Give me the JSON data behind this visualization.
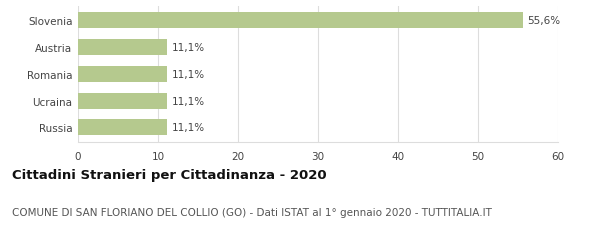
{
  "categories": [
    "Russia",
    "Ucraina",
    "Romania",
    "Austria",
    "Slovenia"
  ],
  "values": [
    11.1,
    11.1,
    11.1,
    11.1,
    55.6
  ],
  "labels": [
    "11,1%",
    "11,1%",
    "11,1%",
    "11,1%",
    "55,6%"
  ],
  "bar_color": "#b5c98e",
  "background_color": "#ffffff",
  "xlim": [
    0,
    60
  ],
  "xticks": [
    0,
    10,
    20,
    30,
    40,
    50,
    60
  ],
  "title_bold": "Cittadini Stranieri per Cittadinanza - 2020",
  "subtitle": "COMUNE DI SAN FLORIANO DEL COLLIO (GO) - Dati ISTAT al 1° gennaio 2020 - TUTTITALIA.IT",
  "title_fontsize": 9.5,
  "subtitle_fontsize": 7.5,
  "bar_label_fontsize": 7.5,
  "tick_fontsize": 7.5,
  "grid_color": "#dddddd",
  "text_color": "#555555",
  "axis_label_color": "#444444",
  "title_color": "#111111"
}
